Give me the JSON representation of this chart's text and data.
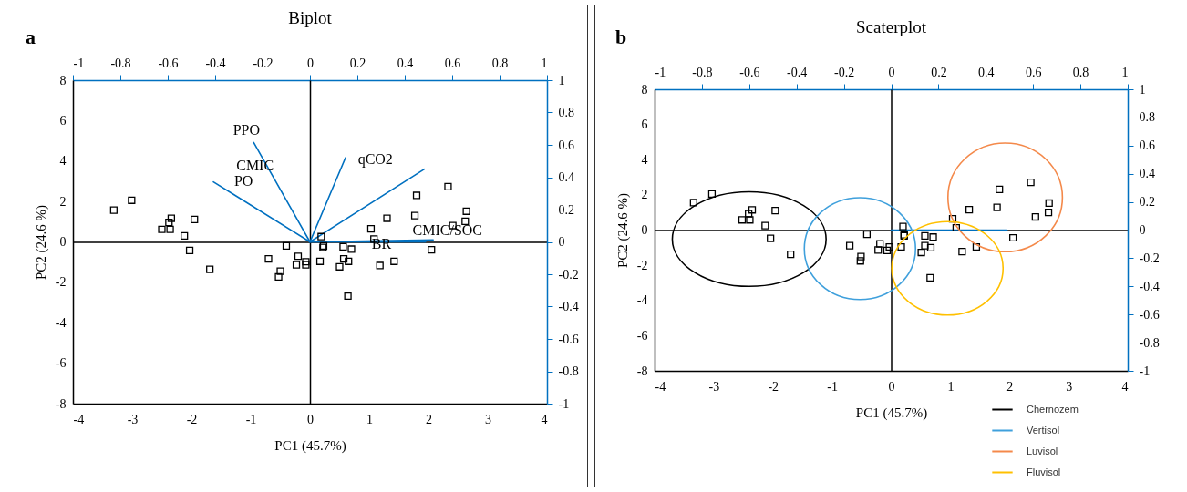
{
  "chart_data": [
    {
      "type": "scatter",
      "title": "Biplot",
      "xlabel": "PC1 (45.7%)",
      "ylabel": "PC2 (24.6 %)",
      "xlim": [
        -4,
        4
      ],
      "ylim": [
        -8,
        8
      ],
      "xticks": [
        -4,
        -3,
        -2,
        -1,
        0,
        1,
        2,
        3,
        4
      ],
      "yticks": [
        -8,
        -6,
        -4,
        -2,
        0,
        2,
        4,
        6,
        8
      ],
      "x2lim": [
        -1,
        1
      ],
      "x2ticks": [
        -1,
        -0.8,
        -0.6,
        -0.4,
        -0.2,
        0,
        0.2,
        0.4,
        0.6,
        0.8,
        1
      ],
      "y2lim": [
        -1,
        1
      ],
      "y2ticks": [
        -1,
        -0.8,
        -0.6,
        -0.4,
        -0.2,
        0,
        0.2,
        0.4,
        0.6,
        0.8,
        1
      ],
      "annotations": [
        "a",
        "PPO",
        "CMIC",
        "PO",
        "qCO2",
        "CMIC/SOC",
        "BR"
      ],
      "series": [
        {
          "type": "line",
          "color": "#0070c0",
          "x": [
            0,
            -0.95
          ],
          "values": [
            0,
            4.92
          ]
        },
        {
          "type": "line",
          "color": "#0070c0",
          "x": [
            0,
            -1.63
          ],
          "values": [
            0,
            2.97
          ]
        },
        {
          "type": "line",
          "color": "#0070c0",
          "x": [
            0,
            0.6
          ],
          "values": [
            0,
            4.17
          ]
        },
        {
          "type": "line",
          "color": "#0070c0",
          "x": [
            0,
            1.93
          ],
          "values": [
            0,
            3.6
          ]
        },
        {
          "type": "line",
          "color": "#0070c0",
          "x": [
            0,
            2.08
          ],
          "values": [
            0,
            0.1
          ]
        },
        {
          "type": "line",
          "color": "#0070c0",
          "x": [
            0,
            1.95
          ],
          "values": [
            0,
            0
          ]
        },
        {
          "type": "scatter",
          "marker": "square",
          "color": "#000000",
          "x": [
            -3.31,
            -3.01,
            -2.34,
            -2.38,
            -2.5,
            -2.36,
            -1.95,
            -2.12,
            -2.03,
            -1.69,
            -0.4,
            -0.7,
            -0.2,
            -0.23,
            -0.07,
            -0.07,
            -0.5,
            -0.53,
            0.19,
            0.22,
            0.23,
            0.17,
            0.56,
            0.7,
            0.57,
            0.65,
            0.5,
            0.64,
            1.03,
            1.08,
            1.3,
            1.18,
            1.42,
            1.77,
            1.8,
            2.05,
            2.33,
            2.41,
            2.62,
            2.64
          ],
          "values": [
            1.57,
            2.06,
            1.17,
            0.96,
            0.62,
            0.62,
            1.11,
            0.3,
            -0.42,
            -1.36,
            -0.2,
            -0.84,
            -0.71,
            -1.13,
            -0.98,
            -1.13,
            -1.45,
            -1.73,
            0.26,
            -0.27,
            -0.2,
            -0.96,
            -0.24,
            -0.36,
            -0.84,
            -0.96,
            -1.23,
            -2.68,
            0.65,
            0.14,
            1.17,
            -1.17,
            -0.96,
            1.3,
            2.3,
            -0.39,
            2.73,
            0.81,
            1.02,
            1.52
          ]
        }
      ]
    },
    {
      "type": "scatter",
      "title": "Scaterplot",
      "xlabel": "PC1 (45.7%)",
      "ylabel": "PC2 (24.6 %)",
      "xlim": [
        -4,
        4
      ],
      "ylim": [
        -8,
        8
      ],
      "xticks": [
        -4,
        -3,
        -2,
        -1,
        0,
        1,
        2,
        3,
        4
      ],
      "yticks": [
        -8,
        -6,
        -4,
        -2,
        0,
        2,
        4,
        6,
        8
      ],
      "x2lim": [
        -1,
        1
      ],
      "x2ticks": [
        -1,
        -0.8,
        -0.6,
        -0.4,
        -0.2,
        0,
        0.2,
        0.4,
        0.6,
        0.8,
        1
      ],
      "y2lim": [
        -1,
        1
      ],
      "y2ticks": [
        -1,
        -0.8,
        -0.6,
        -0.4,
        -0.2,
        0,
        0.2,
        0.4,
        0.6,
        0.8,
        1
      ],
      "legend": "bottom right",
      "annotations": [
        "b"
      ],
      "series": [
        {
          "type": "line",
          "color": "#0070c0",
          "x": [
            0,
            1.96
          ],
          "values": [
            0,
            0
          ]
        },
        {
          "type": "line",
          "name": "Chernozem",
          "color": "#000000"
        },
        {
          "type": "line",
          "name": "Vertisol",
          "color": "#3fa0dc"
        },
        {
          "type": "line",
          "name": "Luvisol",
          "color": "#f4894a"
        },
        {
          "type": "line",
          "name": "Fluvisol",
          "color": "#ffc000"
        },
        {
          "type": "scatter",
          "marker": "square",
          "color": "#000000",
          "x": [
            -3.34,
            -3.03,
            -2.35,
            -2.41,
            -2.52,
            -2.39,
            -1.96,
            -2.13,
            -2.04,
            -1.7,
            -0.41,
            -0.7,
            -0.19,
            -0.22,
            -0.03,
            -0.07,
            -0.51,
            -0.52,
            0.2,
            0.22,
            0.22,
            0.17,
            0.57,
            0.71,
            0.57,
            0.67,
            0.51,
            0.66,
            1.04,
            1.1,
            1.32,
            1.2,
            1.44,
            1.79,
            1.83,
            2.06,
            2.36,
            2.44,
            2.66,
            2.67
          ],
          "values": [
            1.56,
            2.05,
            1.15,
            0.93,
            0.58,
            0.58,
            1.11,
            0.25,
            -0.47,
            -1.38,
            -0.24,
            -0.89,
            -0.78,
            -1.13,
            -0.96,
            -1.16,
            -1.51,
            -1.75,
            0.2,
            -0.33,
            -0.27,
            -0.96,
            -0.33,
            -0.4,
            -0.89,
            -1,
            -1.27,
            -2.71,
            0.64,
            0.13,
            1.16,
            -1.22,
            -0.96,
            1.29,
            2.31,
            -0.44,
            2.71,
            0.75,
            1,
            1.53
          ]
        }
      ]
    }
  ]
}
